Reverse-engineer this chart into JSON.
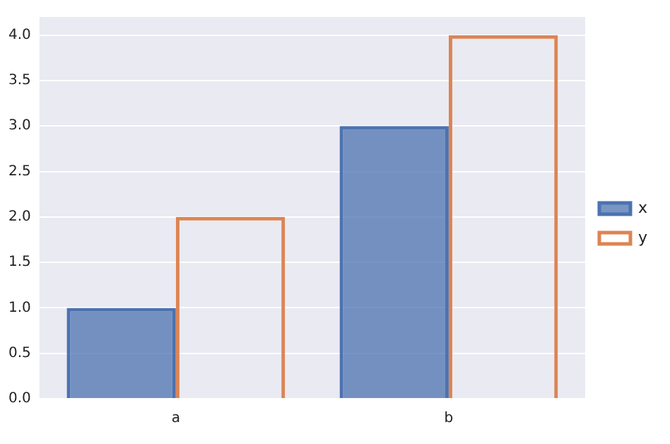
{
  "chart_data": {
    "type": "bar",
    "categories": [
      "a",
      "b"
    ],
    "series": [
      {
        "name": "x",
        "color": "#4c72b0",
        "values": [
          1,
          3
        ]
      },
      {
        "name": "y",
        "color": "#dd8452",
        "values": [
          2,
          4
        ]
      }
    ],
    "ylim": [
      0,
      4.2
    ],
    "yticks": [
      {
        "value": 0,
        "label": "0.0"
      },
      {
        "value": 0.5,
        "label": "0.5"
      },
      {
        "value": 1,
        "label": "1.0"
      },
      {
        "value": 1.5,
        "label": "1.5"
      },
      {
        "value": 2,
        "label": "2.0"
      },
      {
        "value": 2.5,
        "label": "2.5"
      },
      {
        "value": 3,
        "label": "3.0"
      },
      {
        "value": 3.5,
        "label": "3.5"
      },
      {
        "value": 4,
        "label": "4.0"
      }
    ],
    "grid": "y",
    "legend": "right"
  }
}
